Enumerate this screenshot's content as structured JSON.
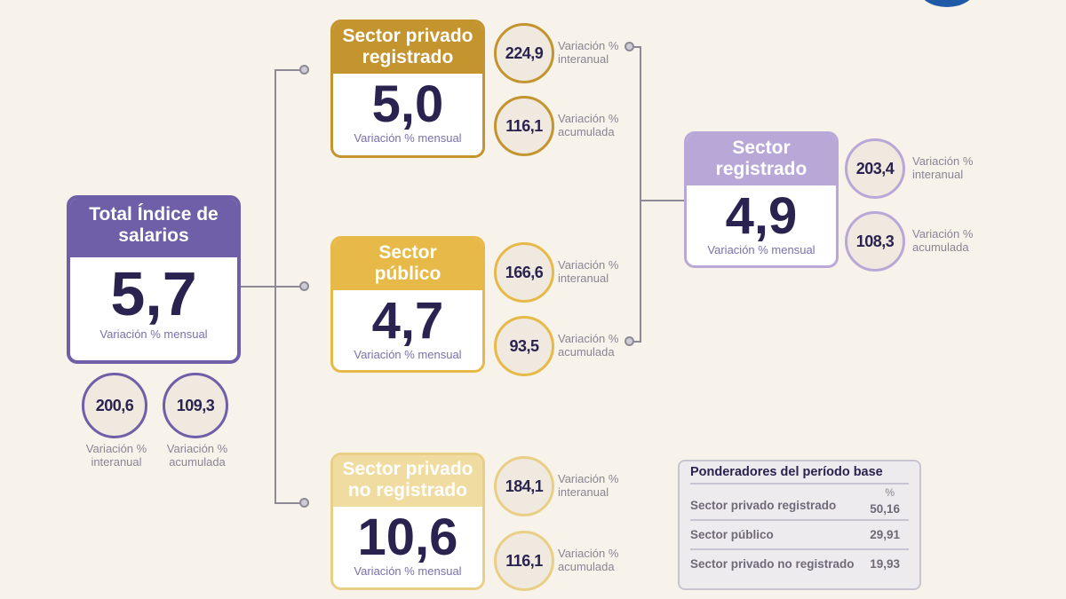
{
  "total": {
    "title": "Total Índice de salarios",
    "value": "5,7",
    "sub": "Variación % mensual",
    "interanual": "200,6",
    "acumulada": "109,3",
    "lbl_interanual": [
      "Variación %",
      "interanual"
    ],
    "lbl_acumulada": [
      "Variación %",
      "acumulada"
    ]
  },
  "sectors": [
    {
      "title1": "Sector privado",
      "title2": "registrado",
      "value": "5,0",
      "sub": "Variación % mensual",
      "interanual": "224,9",
      "acumulada": "116,1",
      "color": "#c4942e"
    },
    {
      "title1": "Sector",
      "title2": "público",
      "value": "4,7",
      "sub": "Variación % mensual",
      "interanual": "166,6",
      "acumulada": "93,5",
      "color": "#e7b948"
    },
    {
      "title1": "Sector privado",
      "title2": "no registrado",
      "value": "10,6",
      "sub": "Variación % mensual",
      "interanual": "184,1",
      "acumulada": "116,1",
      "color": "#f0dca0"
    },
    {
      "title1": "Sector",
      "title2": "registrado",
      "value": "4,9",
      "sub": "Variación % mensual",
      "interanual": "203,4",
      "acumulada": "108,3",
      "color": "#b8a8d8"
    }
  ],
  "labels": {
    "interanual": [
      "Variación %",
      "interanual"
    ],
    "acumulada": [
      "Variación %",
      "acumulada"
    ]
  },
  "table": {
    "title": "Ponderadores del período base",
    "unit": "%",
    "rows": [
      {
        "name": "Sector privado registrado",
        "value": "50,16"
      },
      {
        "name": "Sector público",
        "value": "29,91"
      },
      {
        "name": "Sector privado no registrado",
        "value": "19,93"
      }
    ]
  }
}
